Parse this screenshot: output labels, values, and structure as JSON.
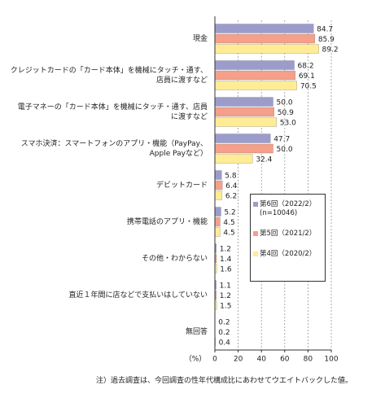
{
  "chart_data": {
    "type": "hbar",
    "categories": [
      "現金",
      "クレジットカードの「カード本体」を機械にタッチ・通す、\n店員に渡すなど",
      "電子マネーの「カード本体」を機械にタッチ・通す、店員\nに渡すなど",
      "スマホ決済：スマートフォンのアプリ・機能（PayPay、\nApple Payなど）",
      "デビットカード",
      "携帯電話のアプリ・機能",
      "その他・わからない",
      "直近１年間に店などで支払いはしていない",
      "無回答"
    ],
    "series": [
      {
        "name": "第6回（2022/2）\n(n=10046)",
        "color": "#9c9ccc",
        "values": [
          84.7,
          68.2,
          50.0,
          47.7,
          5.8,
          5.2,
          1.2,
          1.1,
          0.2
        ],
        "value_labels": [
          "84.7",
          "68.2",
          "50.0",
          "47.7",
          "5.8",
          "5.2",
          "1.2",
          "1.1",
          "0.2"
        ]
      },
      {
        "name": "第5回（2021/2）",
        "color": "#f4a08a",
        "values": [
          85.9,
          69.1,
          50.9,
          50.0,
          6.4,
          4.5,
          1.4,
          1.2,
          0.2
        ],
        "value_labels": [
          "85.9",
          "69.1",
          "50.9",
          "50.0",
          "6.4",
          "4.5",
          "1.4",
          "1.2",
          "0.2"
        ]
      },
      {
        "name": "第4回（2020/2）",
        "color": "#ffec94",
        "values": [
          89.2,
          70.5,
          53.0,
          32.4,
          6.2,
          4.5,
          1.6,
          1.5,
          0.4
        ],
        "value_labels": [
          "89.2",
          "70.5",
          "53.0",
          "32.4",
          "6.2",
          "4.5",
          "1.6",
          "1.5",
          "0.4"
        ]
      }
    ],
    "xlim": [
      0,
      100
    ],
    "xticks": [
      0,
      20,
      40,
      60,
      80,
      100
    ],
    "grid": true,
    "x_label": "（%）",
    "footnote": "注）過去調査は、今回調査の性年代構成比にあわせてウエイトバックした値。"
  }
}
